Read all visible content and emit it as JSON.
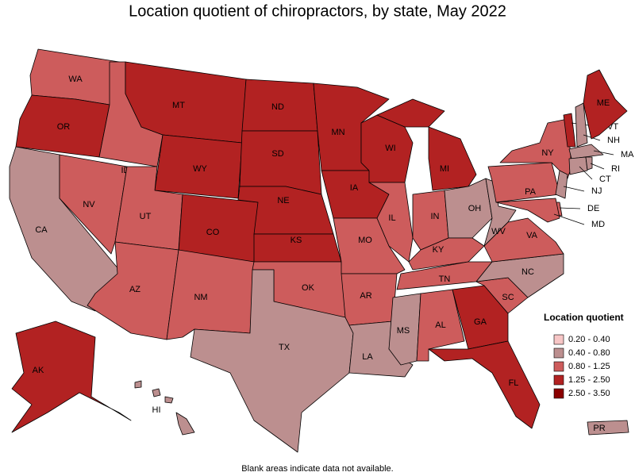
{
  "title": "Location quotient of chiropractors, by state, May 2022",
  "note": "Blank areas indicate data not available.",
  "legend": {
    "title": "Location quotient",
    "items": [
      {
        "label": "0.20 - 0.40",
        "color": "#f7c6c6"
      },
      {
        "label": "0.40 - 0.80",
        "color": "#bc8f8f"
      },
      {
        "label": "0.80 - 1.25",
        "color": "#cd5c5c"
      },
      {
        "label": "1.25 - 2.50",
        "color": "#b22222"
      },
      {
        "label": "2.50 - 3.50",
        "color": "#8b0000"
      }
    ]
  },
  "states": [
    {
      "label": "WA",
      "class": 2
    },
    {
      "label": "OR",
      "class": 3
    },
    {
      "label": "CA",
      "class": 1
    },
    {
      "label": "NV",
      "class": 2
    },
    {
      "label": "ID",
      "class": 2
    },
    {
      "label": "MT",
      "class": 3
    },
    {
      "label": "WY",
      "class": 3
    },
    {
      "label": "UT",
      "class": 2
    },
    {
      "label": "AZ",
      "class": 2
    },
    {
      "label": "CO",
      "class": 3
    },
    {
      "label": "NM",
      "class": 2
    },
    {
      "label": "ND",
      "class": 3
    },
    {
      "label": "SD",
      "class": 3
    },
    {
      "label": "NE",
      "class": 3
    },
    {
      "label": "KS",
      "class": 3
    },
    {
      "label": "OK",
      "class": 2
    },
    {
      "label": "TX",
      "class": 1
    },
    {
      "label": "MN",
      "class": 3
    },
    {
      "label": "IA",
      "class": 3
    },
    {
      "label": "MO",
      "class": 2
    },
    {
      "label": "AR",
      "class": 2
    },
    {
      "label": "LA",
      "class": 1
    },
    {
      "label": "MS",
      "class": 1
    },
    {
      "label": "WI",
      "class": 3
    },
    {
      "label": "IL",
      "class": 2
    },
    {
      "label": "IN",
      "class": 2
    },
    {
      "label": "MI",
      "class": 3
    },
    {
      "label": "OH",
      "class": 1
    },
    {
      "label": "KY",
      "class": 2
    },
    {
      "label": "TN",
      "class": 2
    },
    {
      "label": "AL",
      "class": 2
    },
    {
      "label": "GA",
      "class": 3
    },
    {
      "label": "FL",
      "class": 3
    },
    {
      "label": "SC",
      "class": 2
    },
    {
      "label": "NC",
      "class": 1
    },
    {
      "label": "VA",
      "class": 2
    },
    {
      "label": "WV",
      "class": 1
    },
    {
      "label": "PA",
      "class": 2
    },
    {
      "label": "NY",
      "class": 2
    },
    {
      "label": "NJ",
      "class": 1
    },
    {
      "label": "DE",
      "class": 2
    },
    {
      "label": "MD",
      "class": 2
    },
    {
      "label": "VT",
      "class": 3
    },
    {
      "label": "NH",
      "class": 1
    },
    {
      "label": "ME",
      "class": 3
    },
    {
      "label": "MA",
      "class": 1
    },
    {
      "label": "CT",
      "class": 1
    },
    {
      "label": "RI",
      "class": 1
    },
    {
      "label": "AK",
      "class": 3
    },
    {
      "label": "HI",
      "class": 1
    },
    {
      "label": "PR",
      "class": 1
    }
  ]
}
